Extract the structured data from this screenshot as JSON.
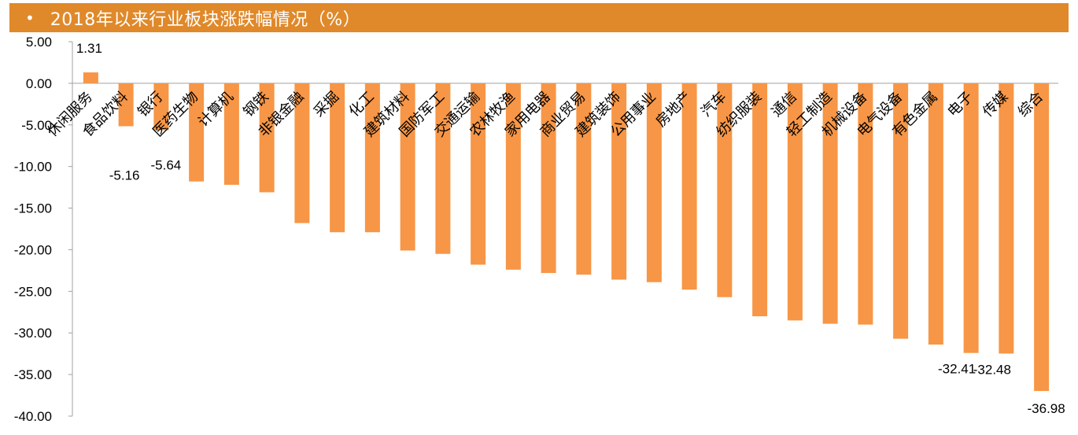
{
  "header": {
    "bullet": "•",
    "title": "2018年以来行业板块涨跌幅情况（%）",
    "background": "#e0892a"
  },
  "chart_data": {
    "type": "bar",
    "title": "2018年以来行业板块涨跌幅情况（%）",
    "xlabel": "",
    "ylabel": "",
    "ylim": [
      -40,
      5
    ],
    "yticks": [
      5,
      0,
      -5,
      -10,
      -15,
      -20,
      -25,
      -30,
      -35,
      -40
    ],
    "ytick_labels": [
      "5.00",
      "0.00",
      "-5.00",
      "-10.00",
      "-15.00",
      "-20.00",
      "-25.00",
      "-30.00",
      "-35.00",
      "-40.00"
    ],
    "grid": false,
    "legend": "none",
    "bar_color": "#f79646",
    "categories": [
      "休闲服务",
      "食品饮料",
      "银行",
      "医药生物",
      "计算机",
      "钢铁",
      "非银金融",
      "采掘",
      "化工",
      "建筑材料",
      "国防军工",
      "交通运输",
      "农林牧渔",
      "家用电器",
      "商业贸易",
      "建筑装饰",
      "公用事业",
      "房地产",
      "汽车",
      "纺织服装",
      "通信",
      "轻工制造",
      "机械设备",
      "电气设备",
      "有色金属",
      "电子",
      "传媒",
      "综合"
    ],
    "values": [
      1.31,
      -5.16,
      -5.64,
      -11.8,
      -12.2,
      -13.1,
      -16.8,
      -17.9,
      -17.9,
      -20.1,
      -20.5,
      -21.8,
      -22.4,
      -22.8,
      -23.0,
      -23.6,
      -23.9,
      -24.8,
      -25.7,
      -28.0,
      -28.5,
      -28.9,
      -29.0,
      -30.7,
      -31.4,
      -32.41,
      -32.48,
      -36.98
    ],
    "data_labels": [
      {
        "index": 0,
        "text": "1.31"
      },
      {
        "index": 1,
        "text": "-5.16"
      },
      {
        "index": 2,
        "text": "-5.64"
      },
      {
        "index": 25,
        "text": "-32.41"
      },
      {
        "index": 26,
        "text": "-32.48"
      },
      {
        "index": 27,
        "text": "-36.98"
      }
    ]
  }
}
